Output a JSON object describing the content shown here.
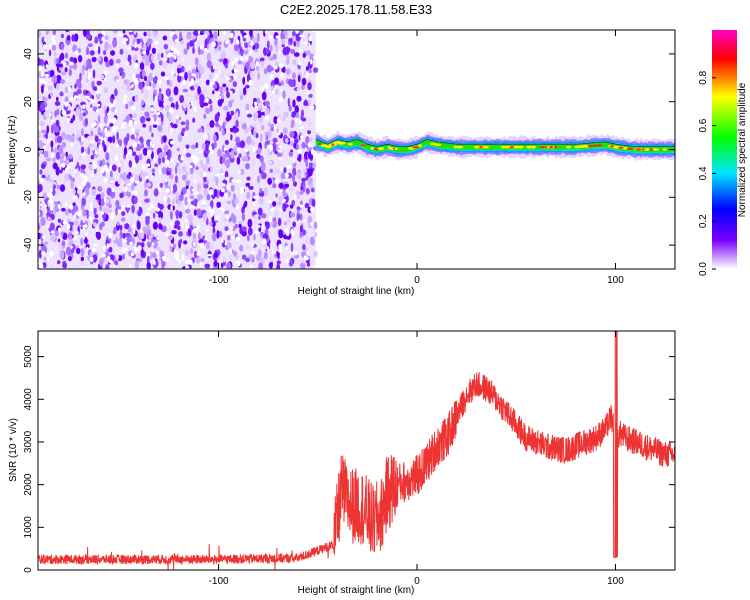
{
  "title": "C2E2.2025.178.11.58.E33",
  "chart_data": [
    {
      "type": "heatmap",
      "xlabel": "Height of straight line (km)",
      "ylabel": "Frequency (Hz)",
      "xlim": [
        -191,
        130
      ],
      "ylim": [
        -50,
        50
      ],
      "xticks": [
        -100,
        0,
        100
      ],
      "xtick_labels": [
        "-100",
        "0",
        "100"
      ],
      "yticks": [
        -40,
        -20,
        0,
        20,
        40
      ],
      "ytick_labels": [
        "-40",
        "-20",
        "0",
        "20",
        "40"
      ],
      "noise_region": {
        "x_range": [
          -191,
          -51
        ],
        "y_range": [
          -50,
          50
        ]
      },
      "signal_trace": {
        "x": [
          -51,
          -45,
          -40,
          -35,
          -30,
          -25,
          -20,
          -15,
          -10,
          -5,
          0,
          5,
          10,
          20,
          40,
          60,
          80,
          95,
          100,
          110,
          130
        ],
        "frequency": [
          3,
          1,
          3,
          2,
          3,
          1,
          0,
          1,
          0,
          0,
          1,
          3,
          2,
          1,
          1,
          1,
          1,
          2,
          1,
          0,
          0
        ]
      },
      "colorbar": {
        "label": "Normalized spectral amplitude",
        "range": [
          0,
          1
        ],
        "ticks": [
          0.0,
          0.2,
          0.4,
          0.6,
          0.8
        ],
        "tick_labels": [
          "0.0",
          "0.2",
          "0.4",
          "0.6",
          "0.8"
        ],
        "colors": [
          "#ffffff",
          "#7b00ff",
          "#0000ff",
          "#00e5ff",
          "#00ff00",
          "#ffff00",
          "#ff0000",
          "#ff00c8"
        ]
      },
      "grid": false
    },
    {
      "type": "line",
      "xlabel": "Height of straight line (km)",
      "ylabel": "SNR (10 * v/v)",
      "xlim": [
        -191,
        130
      ],
      "ylim": [
        0,
        5600
      ],
      "xticks": [
        -100,
        0,
        100
      ],
      "xtick_labels": [
        "-100",
        "0",
        "100"
      ],
      "yticks": [
        0,
        1000,
        2000,
        3000,
        4000,
        5000
      ],
      "ytick_labels": [
        "0",
        "1000",
        "2000",
        "3000",
        "4000",
        "5000"
      ],
      "series": [
        {
          "color": "#ee3333",
          "x": [
            -191,
            -150,
            -100,
            -60,
            -42,
            -38,
            -35,
            -32,
            -28,
            -25,
            -22,
            -18,
            -15,
            -10,
            -5,
            0,
            5,
            10,
            15,
            20,
            25,
            30,
            35,
            40,
            45,
            50,
            55,
            60,
            65,
            70,
            75,
            80,
            85,
            90,
            95,
            98,
            100,
            102,
            105,
            110,
            115,
            120,
            125,
            130
          ],
          "y": [
            250,
            250,
            250,
            280,
            600,
            1900,
            1600,
            1500,
            1500,
            1300,
            1100,
            1300,
            1800,
            2000,
            2100,
            2200,
            2500,
            2900,
            3100,
            3600,
            4100,
            4350,
            4250,
            4000,
            3700,
            3400,
            3100,
            3000,
            2900,
            2850,
            2800,
            2900,
            3000,
            3100,
            3300,
            3600,
            3000,
            3200,
            3100,
            3000,
            2900,
            2800,
            2700,
            2700
          ]
        }
      ],
      "grid": false
    }
  ]
}
